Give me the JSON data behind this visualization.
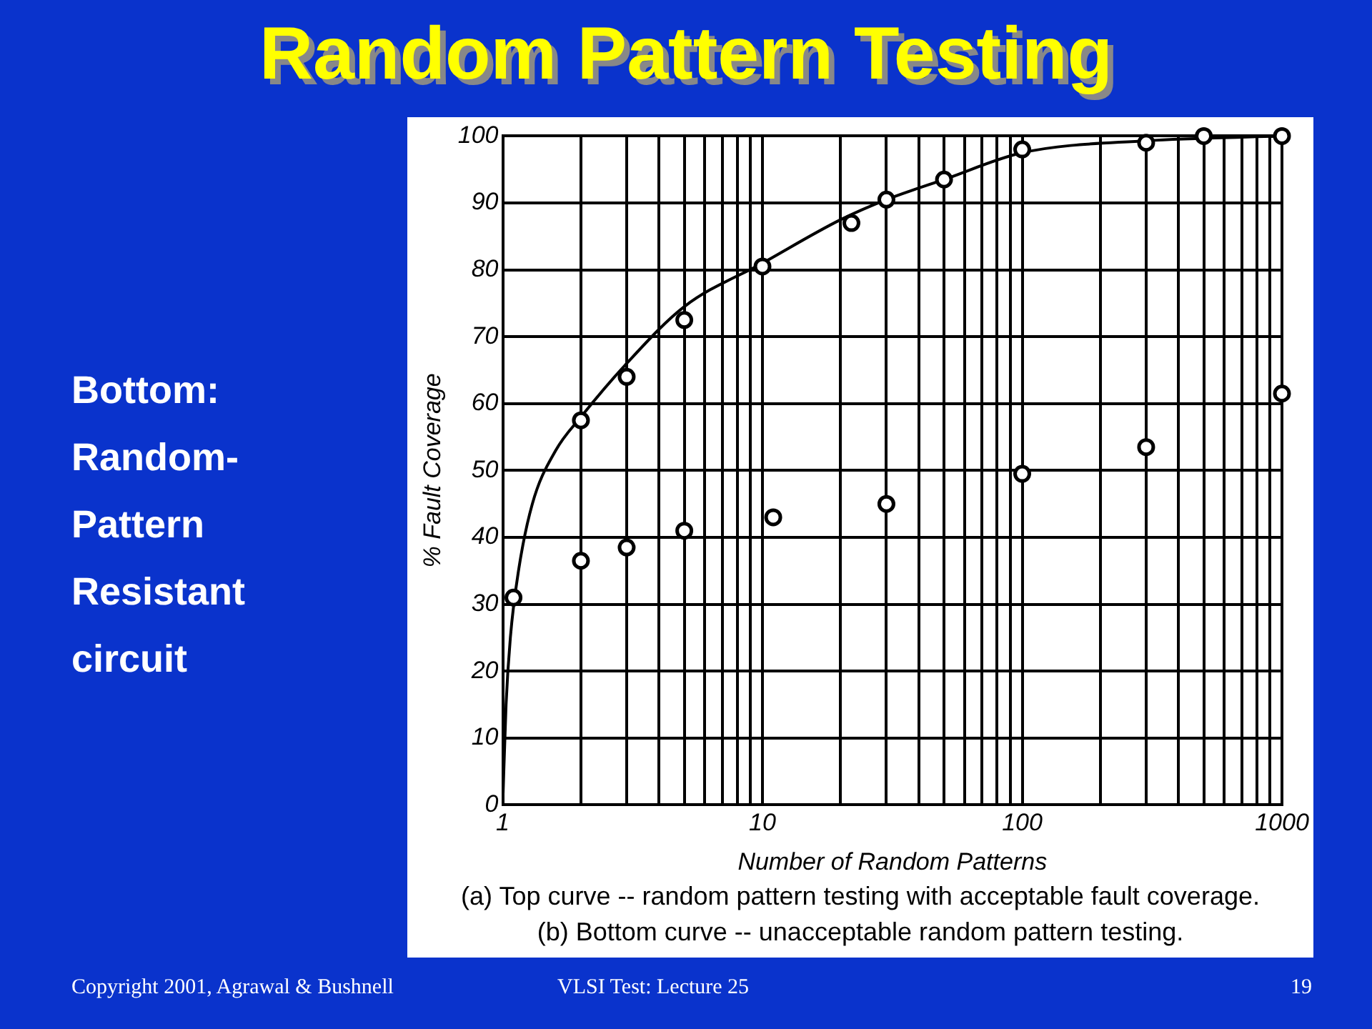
{
  "chart_data": {
    "type": "scatter",
    "title": "Random Pattern Testing",
    "xlabel": "Number of Random Patterns",
    "ylabel": "% Fault Coverage",
    "annotations": [
      "Bottom: Random-Pattern Resistant circuit",
      "(a) Top curve -- random pattern testing with acceptable fault coverage.",
      "(b) Bottom curve -- unacceptable random pattern testing.",
      "Copyright 2001, Agrawal & Bushnell",
      "VLSI Test: Lecture 25",
      "19"
    ],
    "log": "x",
    "grid": true,
    "legend": false,
    "marker": "circle",
    "xlim": [
      1,
      1000
    ],
    "ylim": [
      0,
      100
    ],
    "xticks": [
      1,
      {
        "value": 2,
        "label": null
      },
      {
        "value": 3,
        "label": null
      },
      {
        "value": 4,
        "label": null
      },
      {
        "value": 5,
        "label": null
      },
      {
        "value": 6,
        "label": null
      },
      {
        "value": 7,
        "label": null
      },
      {
        "value": 8,
        "label": null
      },
      {
        "value": 9,
        "label": null
      },
      10,
      {
        "value": 20,
        "label": null
      },
      {
        "value": 30,
        "label": null
      },
      {
        "value": 40,
        "label": null
      },
      {
        "value": 50,
        "label": null
      },
      {
        "value": 60,
        "label": null
      },
      {
        "value": 70,
        "label": null
      },
      {
        "value": 80,
        "label": null
      },
      {
        "value": 90,
        "label": null
      },
      100,
      {
        "value": 200,
        "label": null
      },
      {
        "value": 300,
        "label": null
      },
      {
        "value": 400,
        "label": null
      },
      {
        "value": 500,
        "label": null
      },
      {
        "value": 600,
        "label": null
      },
      {
        "value": 700,
        "label": null
      },
      {
        "value": 800,
        "label": null
      },
      {
        "value": 900,
        "label": null
      },
      1000
    ],
    "yticks": [
      0,
      10,
      20,
      30,
      40,
      50,
      60,
      70,
      80,
      90,
      100
    ],
    "series": [
      {
        "color": "#000000",
        "x": [
          1.1,
          2,
          3,
          5,
          10,
          22,
          30,
          50,
          100,
          300,
          500,
          1000
        ],
        "values": [
          31,
          57.5,
          64,
          72.5,
          80.5,
          87,
          90.5,
          93.5,
          98,
          99,
          100,
          100
        ]
      },
      {
        "color": "#000000",
        "x": [
          2,
          3,
          5,
          11,
          30,
          100,
          300,
          1000
        ],
        "values": [
          36.5,
          38.5,
          41,
          43,
          45,
          49.5,
          53.5,
          61.5
        ]
      },
      {
        "type": "line",
        "marker": "none",
        "color": "#000000",
        "x": [
          1,
          1.03,
          1.07,
          1.15,
          1.3,
          1.6,
          2,
          3,
          5,
          10,
          20,
          30,
          50,
          100,
          300,
          1000
        ],
        "values": [
          0,
          15,
          25,
          35,
          45,
          53,
          58,
          66,
          74.5,
          81,
          87.5,
          90.5,
          93.5,
          97.5,
          99.3,
          100
        ]
      }
    ]
  }
}
